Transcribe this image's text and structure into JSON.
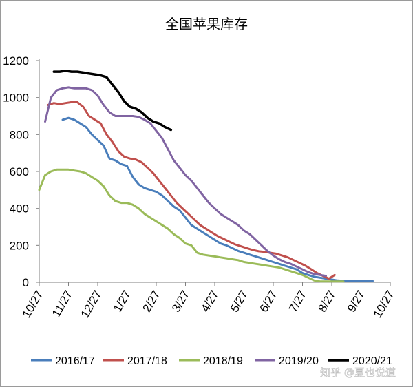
{
  "chart_data": {
    "type": "line",
    "title": "全国苹果库存",
    "xlabel": "",
    "ylabel": "",
    "ylim": [
      0,
      1200
    ],
    "yticks": [
      0,
      200,
      400,
      600,
      800,
      1000,
      1200
    ],
    "x_ticks": [
      "10/27",
      "11/27",
      "12/27",
      "1/27",
      "2/27",
      "3/27",
      "4/27",
      "5/27",
      "6/27",
      "7/27",
      "8/27",
      "9/27",
      "10/27"
    ],
    "x_unit": "months since 10/27",
    "grid": false,
    "legend_position": "bottom",
    "series": [
      {
        "name": "2016/17",
        "color": "#4a7ebb",
        "x": [
          0.8,
          1.0,
          1.2,
          1.4,
          1.6,
          1.8,
          2.0,
          2.2,
          2.4,
          2.6,
          2.8,
          3.0,
          3.2,
          3.4,
          3.6,
          3.8,
          4.0,
          4.2,
          4.4,
          4.6,
          4.8,
          5.0,
          5.2,
          5.4,
          5.6,
          5.8,
          6.0,
          6.2,
          6.4,
          6.6,
          6.8,
          7.0,
          7.2,
          7.4,
          7.6,
          7.8,
          8.0,
          8.2,
          8.4,
          8.6,
          8.8,
          9.0,
          9.2,
          9.4,
          9.6,
          9.8,
          10.0,
          10.2,
          10.4,
          10.6,
          10.8,
          11.0,
          11.2,
          11.4
        ],
        "y": [
          880,
          890,
          880,
          860,
          840,
          800,
          770,
          740,
          670,
          660,
          640,
          630,
          570,
          530,
          510,
          500,
          490,
          470,
          440,
          410,
          390,
          350,
          310,
          290,
          270,
          250,
          230,
          210,
          200,
          185,
          170,
          160,
          150,
          140,
          130,
          120,
          110,
          100,
          90,
          80,
          70,
          50,
          40,
          30,
          25,
          20,
          15,
          10,
          8,
          7,
          7,
          7,
          7,
          7
        ]
      },
      {
        "name": "2017/18",
        "color": "#c0504d",
        "x": [
          0.3,
          0.5,
          0.7,
          0.9,
          1.1,
          1.3,
          1.5,
          1.7,
          1.9,
          2.1,
          2.3,
          2.5,
          2.7,
          2.9,
          3.1,
          3.3,
          3.5,
          3.7,
          3.9,
          4.1,
          4.3,
          4.5,
          4.7,
          4.9,
          5.1,
          5.3,
          5.5,
          5.7,
          5.9,
          6.1,
          6.3,
          6.5,
          6.7,
          6.9,
          7.1,
          7.3,
          7.5,
          7.7,
          7.9,
          8.1,
          8.3,
          8.5,
          8.7,
          8.9,
          9.1,
          9.3,
          9.5,
          9.7,
          9.9,
          10.1
        ],
        "y": [
          960,
          970,
          965,
          970,
          975,
          975,
          950,
          900,
          880,
          860,
          800,
          760,
          710,
          680,
          670,
          665,
          650,
          620,
          590,
          550,
          510,
          470,
          430,
          400,
          370,
          340,
          310,
          290,
          270,
          250,
          235,
          220,
          205,
          195,
          185,
          175,
          168,
          165,
          160,
          155,
          145,
          135,
          120,
          105,
          90,
          70,
          50,
          35,
          20,
          40
        ]
      },
      {
        "name": "2018/19",
        "color": "#9bbb59",
        "x": [
          0.0,
          0.2,
          0.4,
          0.6,
          0.8,
          1.0,
          1.2,
          1.4,
          1.6,
          1.8,
          2.0,
          2.2,
          2.4,
          2.6,
          2.8,
          3.0,
          3.2,
          3.4,
          3.6,
          3.8,
          4.0,
          4.2,
          4.4,
          4.6,
          4.8,
          5.0,
          5.2,
          5.4,
          5.6,
          5.8,
          6.0,
          6.2,
          6.4,
          6.6,
          6.8,
          7.0,
          7.2,
          7.4,
          7.6,
          7.8,
          8.0,
          8.2,
          8.4,
          8.6,
          8.8,
          9.0,
          9.2,
          9.4,
          9.6,
          9.8,
          10.0,
          10.2,
          10.4
        ],
        "y": [
          500,
          580,
          600,
          610,
          610,
          610,
          605,
          600,
          590,
          570,
          550,
          520,
          470,
          440,
          430,
          430,
          420,
          400,
          370,
          350,
          330,
          310,
          290,
          260,
          240,
          210,
          200,
          160,
          150,
          145,
          140,
          135,
          130,
          125,
          120,
          110,
          105,
          100,
          95,
          90,
          85,
          80,
          70,
          60,
          50,
          40,
          25,
          10,
          5,
          5,
          5,
          5,
          5
        ]
      },
      {
        "name": "2019/20",
        "color": "#8064a2",
        "x": [
          0.2,
          0.4,
          0.6,
          0.8,
          1.0,
          1.2,
          1.4,
          1.6,
          1.8,
          2.0,
          2.2,
          2.4,
          2.6,
          2.8,
          3.0,
          3.2,
          3.4,
          3.6,
          3.8,
          4.0,
          4.2,
          4.4,
          4.6,
          4.8,
          5.0,
          5.2,
          5.4,
          5.6,
          5.8,
          6.0,
          6.2,
          6.4,
          6.6,
          6.8,
          7.0,
          7.2,
          7.4,
          7.6,
          7.8,
          8.0,
          8.2,
          8.4,
          8.6,
          8.8,
          9.0,
          9.2,
          9.4,
          9.6,
          9.8
        ],
        "y": [
          870,
          1000,
          1040,
          1050,
          1055,
          1050,
          1050,
          1050,
          1040,
          1010,
          960,
          920,
          900,
          900,
          900,
          900,
          895,
          880,
          860,
          820,
          780,
          720,
          660,
          620,
          580,
          550,
          510,
          470,
          430,
          400,
          370,
          350,
          330,
          310,
          280,
          260,
          230,
          200,
          170,
          145,
          125,
          110,
          100,
          85,
          70,
          55,
          45,
          40,
          35
        ]
      },
      {
        "name": "2020/21",
        "color": "#000000",
        "x": [
          0.5,
          0.7,
          0.9,
          1.1,
          1.3,
          1.5,
          1.7,
          1.9,
          2.1,
          2.3,
          2.5,
          2.7,
          2.9,
          3.1,
          3.3,
          3.5,
          3.7,
          3.9,
          4.1,
          4.3,
          4.5
        ],
        "y": [
          1140,
          1140,
          1145,
          1140,
          1140,
          1135,
          1130,
          1125,
          1120,
          1110,
          1070,
          1030,
          980,
          950,
          940,
          920,
          890,
          870,
          860,
          840,
          825
        ]
      }
    ]
  },
  "watermark": "知乎 @夏也说道"
}
